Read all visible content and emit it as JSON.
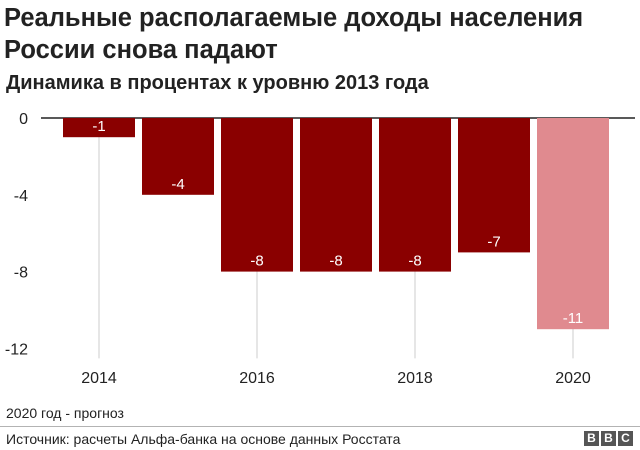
{
  "title": "Реальные располагаемые доходы населения России снова падают",
  "subtitle": "Динамика в процентах к уровню 2013 года",
  "chart_data": {
    "type": "bar",
    "title": "Реальные располагаемые доходы населения России снова падают",
    "subtitle": "Динамика в процентах к уровню 2013 года",
    "categories": [
      "2014",
      "2015",
      "2016",
      "2017",
      "2018",
      "2019",
      "2020"
    ],
    "values": [
      -1,
      -4,
      -8,
      -8,
      -8,
      -7,
      -11
    ],
    "data_labels": [
      "-1",
      "-4",
      "-8",
      "-8",
      "-8",
      "-7",
      "-11"
    ],
    "x_ticks": [
      "2014",
      "2016",
      "2018",
      "2020"
    ],
    "y_ticks": [
      "0",
      "-4",
      "-8",
      "-12"
    ],
    "ylim": [
      -12,
      0
    ],
    "grid": "vertical",
    "legend": "none",
    "colors": {
      "actual": "#8a0000",
      "forecast": "#e08a8f",
      "label": "#ffffff",
      "zero_line": "#222222",
      "grid": "#cccccc"
    },
    "forecast_categories": [
      "2020"
    ]
  },
  "note": "2020 год - прогноз",
  "source": "Источник: расчеты Альфа-банка на основе данных Росстата",
  "logo": [
    "B",
    "B",
    "C"
  ]
}
